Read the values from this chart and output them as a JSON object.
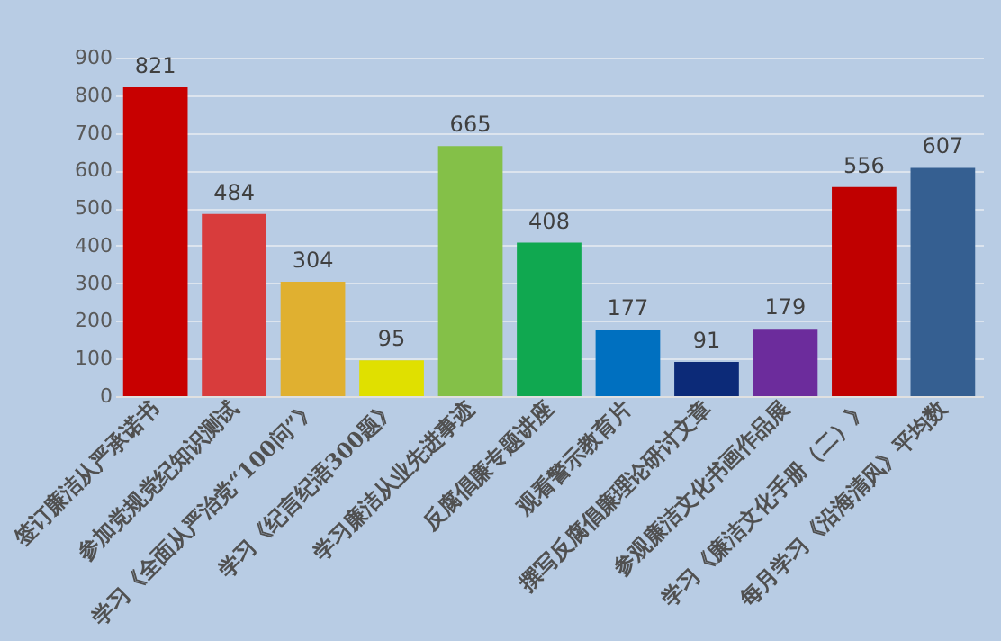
{
  "chart_data": {
    "type": "bar",
    "categories": [
      "签订廉洁从严承诺书",
      "参加党规党纪知识测试",
      "学习《全面从严治党“100问”》",
      "学习《纪言纪语300题》",
      "学习廉洁从业先进事迹",
      "反腐倡廉专题讲座",
      "观看警示教育片",
      "撰写反腐倡廉理论研讨文章",
      "参观廉洁文化书画作品展",
      "学习《廉洁文化手册（二）》",
      "每月学习《沿海清风》平均数"
    ],
    "values": [
      821,
      484,
      304,
      95,
      665,
      408,
      177,
      91,
      179,
      556,
      607
    ],
    "colors": [
      "#c80000",
      "#d83c3c",
      "#e0b030",
      "#e0e000",
      "#84c048",
      "#10a850",
      "#0070c0",
      "#0c2a78",
      "#6c2c9c",
      "#c00000",
      "#355f91"
    ],
    "ylim": [
      0,
      900
    ],
    "yticks": [
      0,
      100,
      200,
      300,
      400,
      500,
      600,
      700,
      800,
      900
    ],
    "grid": "y",
    "data_labels": true
  }
}
